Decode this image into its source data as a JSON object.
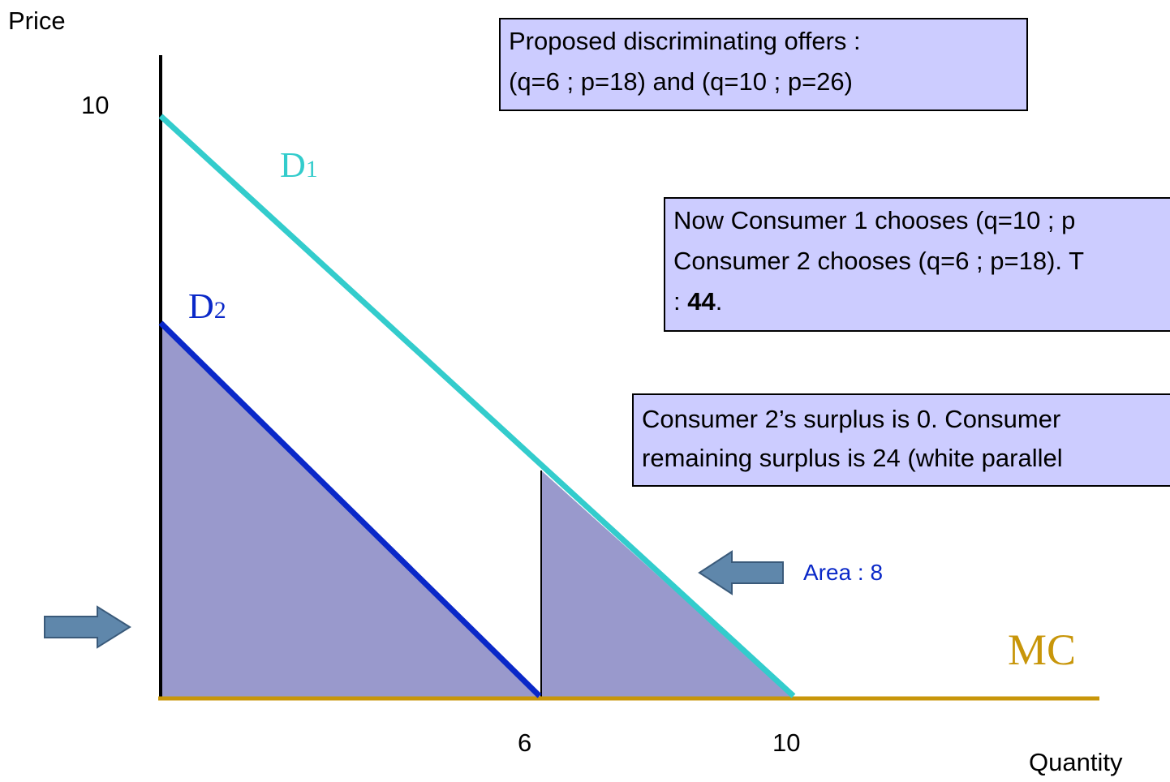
{
  "axes": {
    "y_label": "Price",
    "x_label": "Quantity",
    "y_ticks": [
      "10"
    ],
    "x_ticks": [
      "6",
      "10"
    ]
  },
  "curves": {
    "d1": {
      "letter": "D",
      "sub": "1"
    },
    "d2": {
      "letter": "D",
      "sub": "2"
    },
    "mc": "MC"
  },
  "area_label": "Area : 8",
  "boxes": [
    {
      "lines": [
        "Proposed discriminating offers :",
        "(q=6 ; p=18) and (q=10 ; p=26)"
      ]
    },
    {
      "lines": [
        "Now Consumer 1 chooses (q=10 ; p",
        "Consumer 2 chooses  (q=6 ; p=18). T"
      ],
      "last": {
        "prefix": ": ",
        "bold": "44",
        "suffix": "."
      }
    },
    {
      "lines": [
        "Consumer 2’s surplus is 0.  Consumer",
        "remaining surplus is 24 (white parallel"
      ]
    }
  ]
}
